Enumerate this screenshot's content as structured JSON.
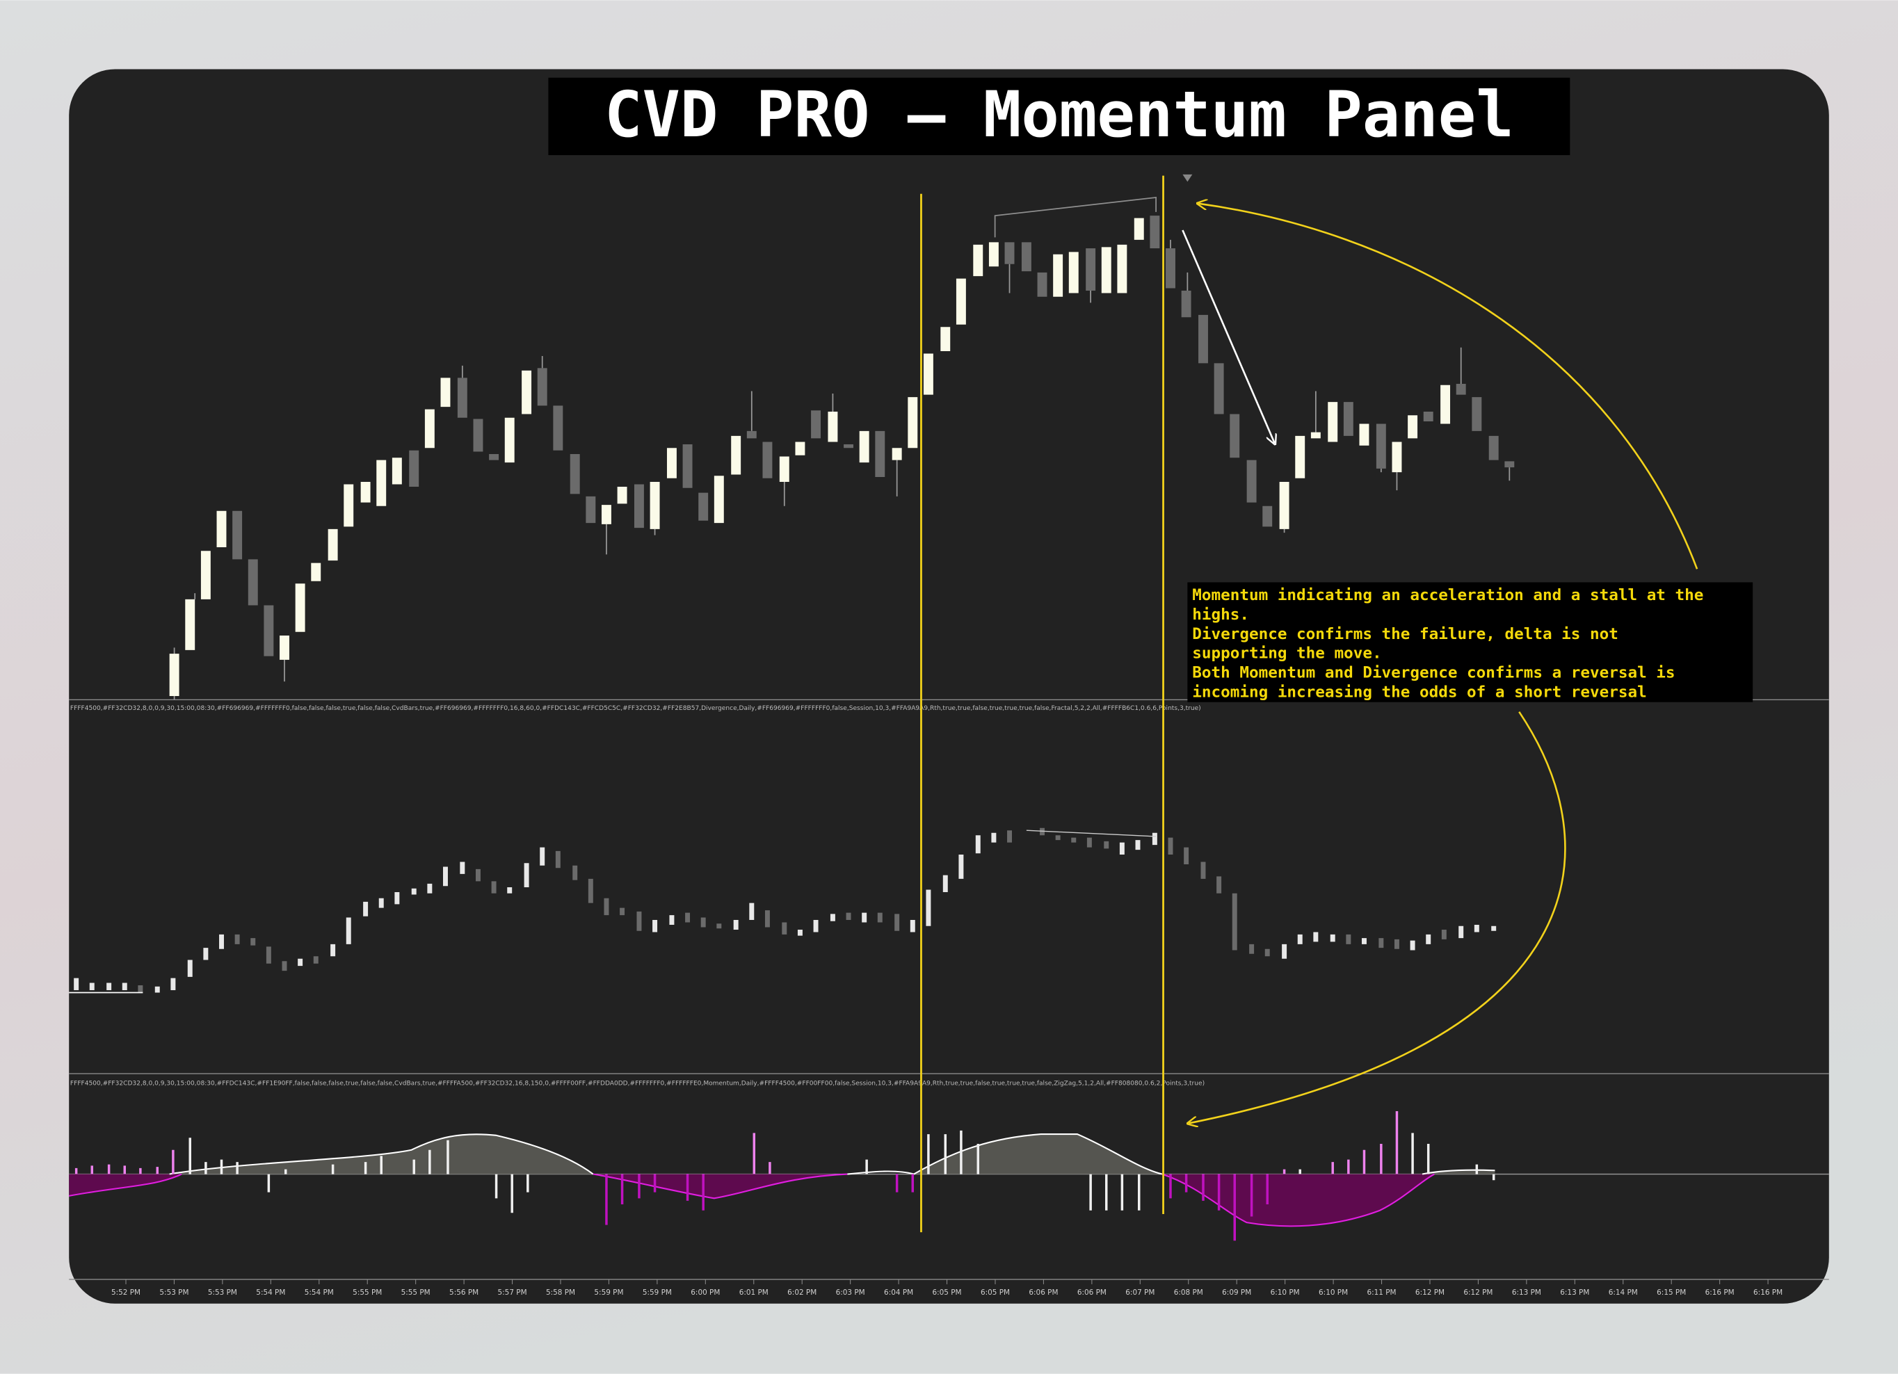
{
  "title": "CVD PRO – Momentum Panel",
  "annotation": [
    "Momentum indicating an acceleration and a stall at the",
    "highs.",
    "Divergence confirms the failure, delta is not",
    "supporting the move.",
    "Both Momentum and Divergence confirms a reversal is",
    "incoming increasing the odds of a short reversal"
  ],
  "panels": {
    "divergence_settings": "FFFF4500,#FF32CD32,8,0,0,9,30,15:00,08:30,#FF696969,#FFFFFFF0,false,false,false,true,false,false,CvdBars,true,#FF696969,#FFFFFFF0,16,8,60,0,#FFDC143C,#FFCD5C5C,#FF32CD32,#FF2E8B57,Divergence,Daily,#FF696969,#FFFFFFF0,false,Session,10,3,#FFA9A9A9,Rth,true,true,false,true,true,true,false,Fractal,5,2,2,All,#FFFFB6C1,0.6,6,Points,3,true)",
    "momentum_settings": "FFFF4500,#FF32CD32,8,0,0,9,30,15:00,08:30,#FFDC143C,#FF1E90FF,false,false,false,true,false,false,CvdBars,true,#FFFFA500,#FF32CD32,16,8,150,0,#FFFF00FF,#FFDDA0DD,#FFFFFFF0,#FFFFFFE0,Momentum,Daily,#FFFF4500,#FF00FF00,false,Session,10,3,#FFA9A9A9,Rth,true,true,false,true,true,true,false,ZigZag,5,1,2,All,#FF808080,0.6,2,Points,3,true)"
  },
  "time_axis": [
    "5:52 PM",
    "5:53 PM",
    "5:53 PM",
    "5:54 PM",
    "5:54 PM",
    "5:55 PM",
    "5:55 PM",
    "5:56 PM",
    "5:57 PM",
    "5:58 PM",
    "5:59 PM",
    "5:59 PM",
    "6:00 PM",
    "6:01 PM",
    "6:02 PM",
    "6:03 PM",
    "6:04 PM",
    "6:05 PM",
    "6:05 PM",
    "6:06 PM",
    "6:06 PM",
    "6:07 PM",
    "6:08 PM",
    "6:09 PM",
    "6:10 PM",
    "6:10 PM",
    "6:11 PM",
    "6:12 PM",
    "6:12 PM",
    "6:13 PM",
    "6:13 PM",
    "6:14 PM",
    "6:15 PM",
    "6:16 PM",
    "6:16 PM"
  ]
}
